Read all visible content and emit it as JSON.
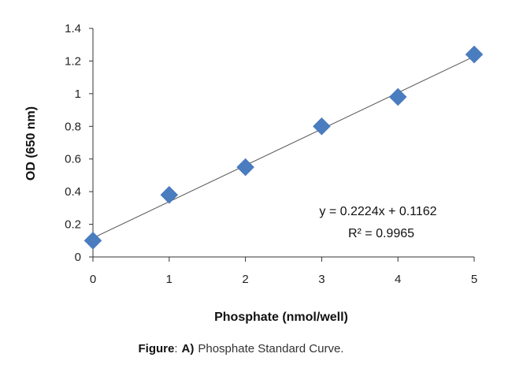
{
  "chart_data": {
    "type": "scatter",
    "x": [
      0,
      1,
      2,
      3,
      4,
      5
    ],
    "y": [
      0.1,
      0.38,
      0.55,
      0.8,
      0.98,
      1.24
    ],
    "xlabel": "Phosphate (nmol/well)",
    "ylabel": "OD (650 nm)",
    "xlim": [
      0,
      5
    ],
    "ylim": [
      0,
      1.4
    ],
    "x_ticks": [
      "0",
      "1",
      "2",
      "3",
      "4",
      "5"
    ],
    "y_ticks": [
      "0",
      "0.2",
      "0.4",
      "0.6",
      "0.8",
      "1",
      "1.2",
      "1.4"
    ],
    "grid": false,
    "marker": "diamond",
    "marker_color": "#4a7cc0",
    "trendline": {
      "slope": 0.2224,
      "intercept": 0.1162,
      "color": "#555555",
      "equation": "y = 0.2224x  + 0.1162",
      "r_squared": "R² = 0.9965"
    }
  },
  "caption": {
    "prefix": "Figure",
    "colon": ":",
    "part": "A)",
    "text": "Phosphate Standard Curve."
  }
}
